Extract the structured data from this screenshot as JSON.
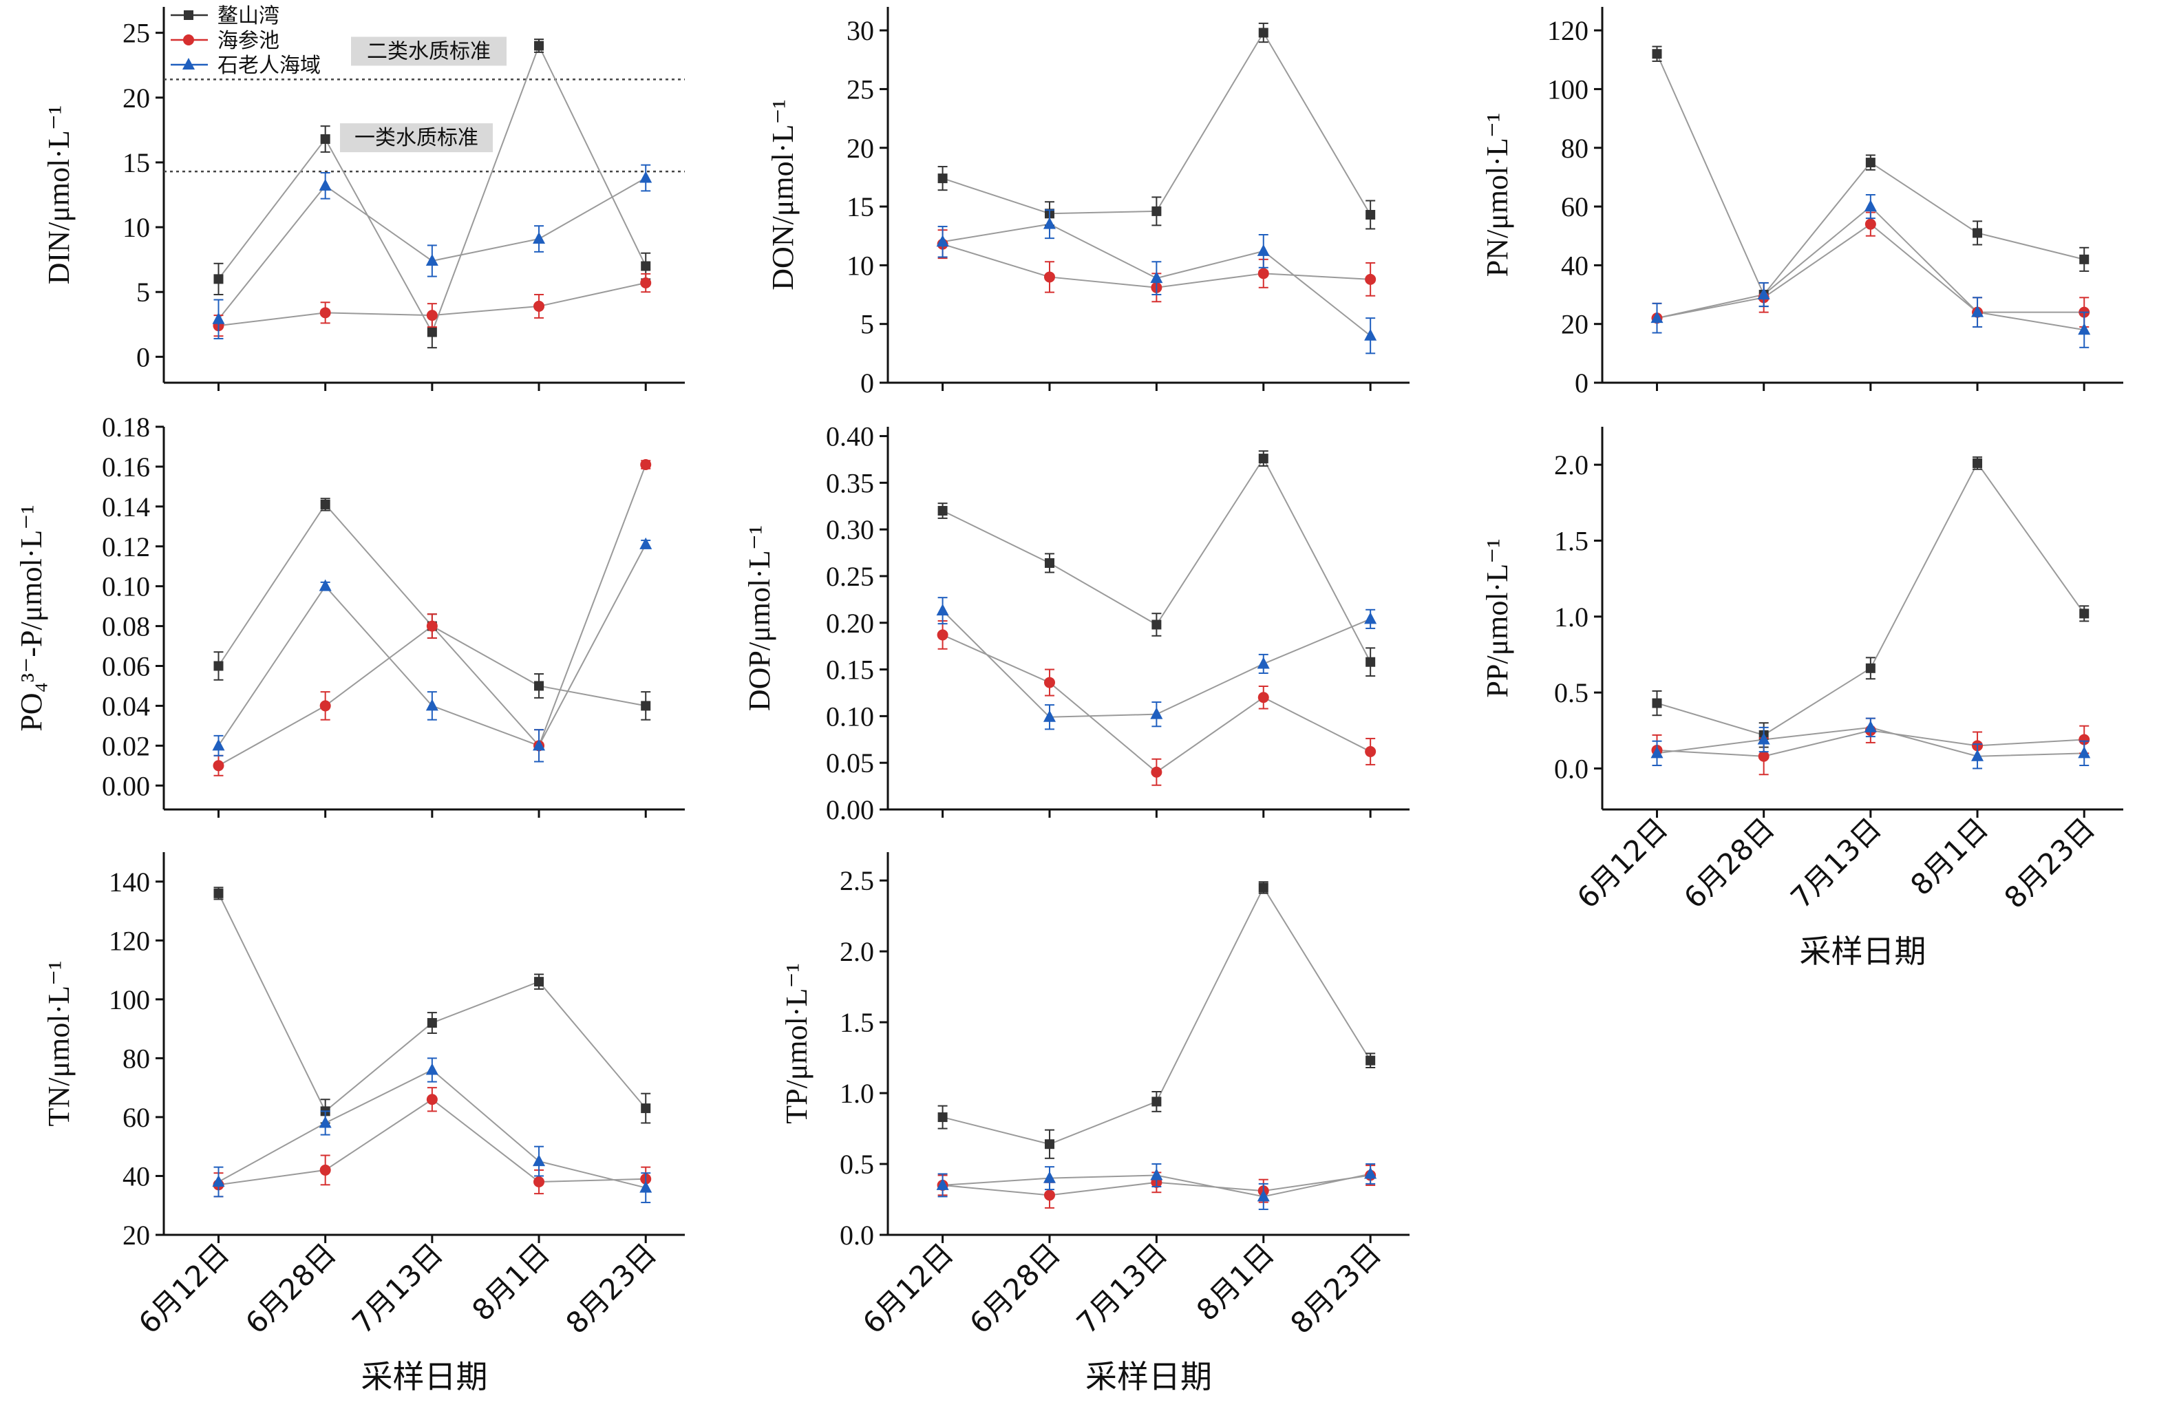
{
  "figure": {
    "x_axis_title": "采样日期",
    "categories": [
      "6月12日",
      "6月28日",
      "7月13日",
      "8月1日",
      "8月23日"
    ],
    "colors": {
      "鳌山湾": "#333333",
      "海参池": "#d62f2f",
      "石老人海域": "#1f5fbf",
      "grid_line": "#9a9a9a"
    },
    "legend": [
      {
        "name": "鳌山湾",
        "marker": "square"
      },
      {
        "name": "海参池",
        "marker": "circle"
      },
      {
        "name": "石老人海域",
        "marker": "triangle"
      }
    ],
    "standards": [
      {
        "label": "二类水质标准",
        "value": 21.4
      },
      {
        "label": "一类水质标准",
        "value": 14.3
      }
    ]
  },
  "chart_data": [
    {
      "type": "line",
      "panel": "DIN",
      "ylabel": "DIN/μmol·L⁻¹",
      "ylim": [
        -2,
        27
      ],
      "yticks": [
        0,
        5,
        10,
        15,
        20,
        25
      ],
      "decimals": 0,
      "series": [
        {
          "name": "鳌山湾",
          "values": [
            6.0,
            16.8,
            1.9,
            24.0,
            7.0
          ],
          "errors": [
            1.2,
            1.0,
            1.2,
            0.5,
            1.0
          ]
        },
        {
          "name": "海参池",
          "values": [
            2.4,
            3.4,
            3.2,
            3.9,
            5.7
          ],
          "errors": [
            0.8,
            0.8,
            0.9,
            0.9,
            0.7
          ]
        },
        {
          "name": "石老人海域",
          "values": [
            2.9,
            13.2,
            7.4,
            9.1,
            13.8
          ],
          "errors": [
            1.5,
            1.0,
            1.2,
            1.0,
            1.0
          ]
        }
      ]
    },
    {
      "type": "line",
      "panel": "DON",
      "ylabel": "DON/μmol·L⁻¹",
      "ylim": [
        0,
        32
      ],
      "yticks": [
        0,
        5,
        10,
        15,
        20,
        25,
        30
      ],
      "decimals": 0,
      "series": [
        {
          "name": "鳌山湾",
          "values": [
            17.4,
            14.4,
            14.6,
            29.8,
            14.3
          ],
          "errors": [
            1.0,
            1.0,
            1.2,
            0.8,
            1.2
          ]
        },
        {
          "name": "海参池",
          "values": [
            11.8,
            9.0,
            8.1,
            9.3,
            8.8
          ],
          "errors": [
            1.2,
            1.3,
            1.2,
            1.2,
            1.4
          ]
        },
        {
          "name": "石老人海域",
          "values": [
            12.0,
            13.5,
            8.9,
            11.2,
            4.0
          ],
          "errors": [
            1.3,
            1.2,
            1.4,
            1.4,
            1.5
          ]
        }
      ]
    },
    {
      "type": "line",
      "panel": "PN",
      "ylabel": "PN/μmol·L⁻¹",
      "ylim": [
        0,
        128
      ],
      "yticks": [
        0,
        20,
        40,
        60,
        80,
        100,
        120
      ],
      "decimals": 0,
      "series": [
        {
          "name": "鳌山湾",
          "values": [
            112,
            30,
            75,
            51,
            42
          ],
          "errors": [
            2.5,
            4,
            2.5,
            4,
            4
          ]
        },
        {
          "name": "海参池",
          "values": [
            22,
            29,
            54,
            24,
            24
          ],
          "errors": [
            5,
            5,
            4,
            5,
            5
          ]
        },
        {
          "name": "石老人海域",
          "values": [
            22,
            30,
            60,
            24,
            18
          ],
          "errors": [
            5,
            4,
            4,
            5,
            6
          ]
        }
      ]
    },
    {
      "type": "line",
      "panel": "PO4",
      "ylabel": "PO₄³⁻-P/μmol·L⁻¹",
      "ylim": [
        -0.012,
        0.18
      ],
      "yticks": [
        0,
        0.02,
        0.04,
        0.06,
        0.08,
        0.1,
        0.12,
        0.14,
        0.16,
        0.18
      ],
      "decimals": 2,
      "series": [
        {
          "name": "鳌山湾",
          "values": [
            0.06,
            0.141,
            0.08,
            0.05,
            0.04
          ],
          "errors": [
            0.007,
            0.003,
            0.006,
            0.006,
            0.007
          ]
        },
        {
          "name": "海参池",
          "values": [
            0.01,
            0.04,
            0.08,
            0.02,
            0.161
          ],
          "errors": [
            0.005,
            0.007,
            0.006,
            0.008,
            0.002
          ]
        },
        {
          "name": "石老人海域",
          "values": [
            0.02,
            0.1,
            0.04,
            0.02,
            0.121
          ],
          "errors": [
            0.005,
            0.002,
            0.007,
            0.008,
            0.002
          ]
        }
      ]
    },
    {
      "type": "line",
      "panel": "DOP",
      "ylabel": "DOP/μmol·L⁻¹",
      "ylim": [
        0,
        0.41
      ],
      "yticks": [
        0,
        0.05,
        0.1,
        0.15,
        0.2,
        0.25,
        0.3,
        0.35,
        0.4
      ],
      "decimals": 2,
      "series": [
        {
          "name": "鳌山湾",
          "values": [
            0.32,
            0.264,
            0.198,
            0.376,
            0.158
          ],
          "errors": [
            0.008,
            0.01,
            0.012,
            0.008,
            0.015
          ]
        },
        {
          "name": "海参池",
          "values": [
            0.187,
            0.136,
            0.04,
            0.12,
            0.062
          ],
          "errors": [
            0.015,
            0.014,
            0.014,
            0.012,
            0.014
          ]
        },
        {
          "name": "石老人海域",
          "values": [
            0.213,
            0.099,
            0.102,
            0.156,
            0.204
          ],
          "errors": [
            0.014,
            0.013,
            0.013,
            0.01,
            0.01
          ]
        }
      ]
    },
    {
      "type": "line",
      "panel": "PP",
      "ylabel": "PP/μmol·L⁻¹",
      "ylim": [
        -0.27,
        2.25
      ],
      "yticks": [
        0,
        0.5,
        1.0,
        1.5,
        2.0
      ],
      "decimals": 1,
      "series": [
        {
          "name": "鳌山湾",
          "values": [
            0.43,
            0.22,
            0.66,
            2.01,
            1.02
          ],
          "errors": [
            0.08,
            0.08,
            0.07,
            0.04,
            0.05
          ]
        },
        {
          "name": "海参池",
          "values": [
            0.12,
            0.08,
            0.25,
            0.15,
            0.19
          ],
          "errors": [
            0.1,
            0.12,
            0.08,
            0.09,
            0.09
          ]
        },
        {
          "name": "石老人海域",
          "values": [
            0.1,
            0.19,
            0.27,
            0.08,
            0.1
          ],
          "errors": [
            0.08,
            0.08,
            0.06,
            0.08,
            0.08
          ]
        }
      ]
    },
    {
      "type": "line",
      "panel": "TN",
      "ylabel": "TN/μmol·L⁻¹",
      "ylim": [
        20,
        150
      ],
      "yticks": [
        20,
        40,
        60,
        80,
        100,
        120,
        140
      ],
      "decimals": 0,
      "series": [
        {
          "name": "鳌山湾",
          "values": [
            136,
            62,
            92,
            106,
            63
          ],
          "errors": [
            2,
            4,
            3.5,
            2.5,
            5
          ]
        },
        {
          "name": "海参池",
          "values": [
            37,
            42,
            66,
            38,
            39
          ],
          "errors": [
            4,
            5,
            4,
            4,
            4
          ]
        },
        {
          "name": "石老人海域",
          "values": [
            38,
            58,
            76,
            45,
            36
          ],
          "errors": [
            5,
            4,
            4,
            5,
            5
          ]
        }
      ]
    },
    {
      "type": "line",
      "panel": "TP",
      "ylabel": "TP/μmol·L⁻¹",
      "ylim": [
        0,
        2.7
      ],
      "yticks": [
        0,
        0.5,
        1.0,
        1.5,
        2.0,
        2.5
      ],
      "decimals": 1,
      "series": [
        {
          "name": "鳌山湾",
          "values": [
            0.83,
            0.64,
            0.94,
            2.45,
            1.23
          ],
          "errors": [
            0.08,
            0.1,
            0.07,
            0.04,
            0.05
          ]
        },
        {
          "name": "海参池",
          "values": [
            0.35,
            0.28,
            0.37,
            0.31,
            0.42
          ],
          "errors": [
            0.07,
            0.09,
            0.07,
            0.08,
            0.07
          ]
        },
        {
          "name": "石老人海域",
          "values": [
            0.35,
            0.4,
            0.42,
            0.27,
            0.43
          ],
          "errors": [
            0.08,
            0.08,
            0.08,
            0.09,
            0.07
          ]
        }
      ]
    }
  ]
}
